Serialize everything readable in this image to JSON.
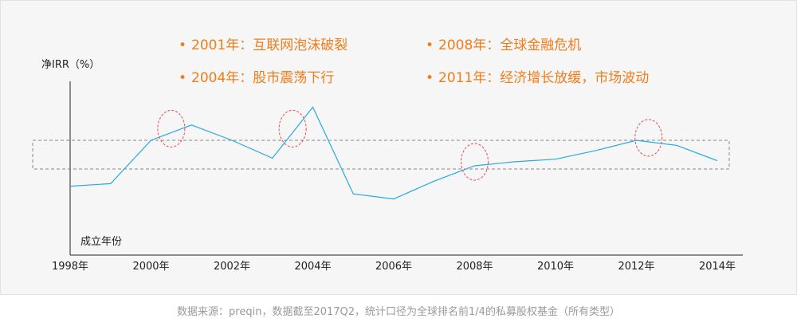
{
  "chart_data": {
    "type": "line",
    "ylabel": "净IRR（%）",
    "xlabel": "成立年份",
    "x": [
      1998,
      1999,
      2000,
      2001,
      2002,
      2003,
      2004,
      2005,
      2006,
      2007,
      2008,
      2009,
      2010,
      2011,
      2012,
      2013,
      2014
    ],
    "xticks": [
      "1998年",
      "2000年",
      "2002年",
      "2004年",
      "2006年",
      "2008年",
      "2010年",
      "2012年",
      "2014年"
    ],
    "series": [
      {
        "values": [
          13.5,
          14,
          22.5,
          25.5,
          22.5,
          19,
          29,
          12,
          11,
          14.5,
          17.5,
          18.3,
          18.8,
          20.5,
          22.5,
          21.5,
          18.5
        ]
      }
    ],
    "ylim": [
      0,
      50
    ],
    "grid": false,
    "colors": {
      "line": "#27a9e1",
      "circle": "#e84c4f",
      "band": "#888888",
      "annotation": "#f07d1a"
    },
    "annotations": [
      {
        "text": "2001年：互联网泡沫破裂"
      },
      {
        "text": "2008年：全球金融危机"
      },
      {
        "text": "2004年：股市震荡下行"
      },
      {
        "text": "2011年：经济增长放缓，市场波动"
      }
    ],
    "highlights": [
      2000.5,
      2003.5,
      2008,
      2012.3
    ]
  },
  "footer": {
    "source": "数据来源：preqin，数据截至2017Q2，统计口径为全球排名前1/4的私募股权基金（所有类型）"
  }
}
